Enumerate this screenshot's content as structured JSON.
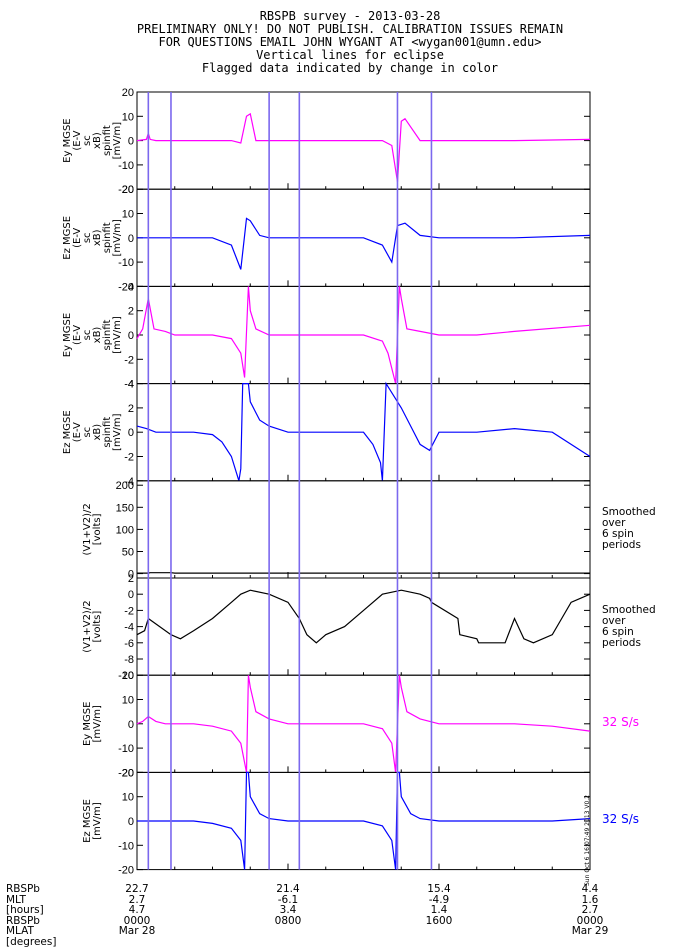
{
  "header": {
    "lines": [
      "RBSPB survey - 2013-03-28",
      "PRELIMINARY ONLY! DO NOT PUBLISH. CALIBRATION ISSUES REMAIN",
      "FOR QUESTIONS EMAIL JOHN WYGANT AT <wygan001@umn.edu>",
      "Vertical lines for eclipse",
      "Flagged data indicated by change in color"
    ]
  },
  "colors": {
    "magenta": "#ff00ff",
    "blue": "#0000ff",
    "black": "#000000",
    "eclipse": "#7b68ee"
  },
  "eclipse_lines_hours": [
    0.6,
    1.8,
    7.0,
    8.6,
    13.8,
    15.6
  ],
  "chart_data": [
    {
      "type": "line",
      "ylabel": [
        "Ey MGSE",
        "(E-V",
        "sc",
        "xB)",
        "spinfit",
        "[mV/m]"
      ],
      "ylim": [
        -20,
        20
      ],
      "yticks": [
        20,
        10,
        0,
        -10,
        -20
      ],
      "color": "magenta",
      "x_hours": [
        0,
        0.5,
        0.6,
        0.7,
        1.0,
        1.5,
        2.0,
        3.0,
        4.0,
        5.0,
        5.5,
        5.8,
        6.0,
        6.3,
        7.0,
        8.0,
        9.0,
        12.0,
        13.0,
        13.5,
        13.8,
        14.0,
        14.2,
        15.0,
        16.0,
        18.0,
        20.0,
        24.0
      ],
      "values": [
        0,
        0.5,
        3,
        0.5,
        0,
        0,
        0,
        0,
        0,
        0,
        -1,
        10,
        11,
        0,
        0,
        0,
        0,
        0,
        0,
        -2,
        -17,
        8,
        9,
        0,
        0,
        0,
        0,
        0.5
      ]
    },
    {
      "type": "line",
      "ylabel": [
        "Ez MGSE",
        "(E-V",
        "sc",
        "xB)",
        "spinfit",
        "[mV/m]"
      ],
      "ylim": [
        -20,
        20
      ],
      "yticks": [
        20,
        10,
        0,
        -10,
        -20
      ],
      "color": "blue",
      "x_hours": [
        0,
        0.5,
        1.0,
        2.0,
        3.0,
        4.0,
        5.0,
        5.5,
        5.8,
        6.0,
        6.5,
        7.0,
        8.0,
        9.0,
        12.0,
        13.0,
        13.5,
        13.8,
        14.2,
        15.0,
        16.0,
        18.0,
        20.0,
        24.0
      ],
      "values": [
        0,
        0,
        0,
        0,
        0,
        0,
        -3,
        -13,
        8,
        7,
        1,
        0,
        0,
        0,
        0,
        -3,
        -10,
        5,
        6,
        1,
        0,
        0,
        0,
        1
      ]
    },
    {
      "type": "line",
      "ylabel": [
        "Ey MGSE",
        "(E-V",
        "sc",
        "xB)",
        "spinfit",
        "[mV/m]"
      ],
      "ylim": [
        -4,
        4
      ],
      "yticks": [
        4,
        2,
        0,
        -2,
        -4
      ],
      "color": "magenta",
      "x_hours": [
        0,
        0.3,
        0.6,
        0.9,
        1.5,
        2.0,
        3.0,
        4.0,
        5.0,
        5.5,
        5.7,
        5.9,
        6.0,
        6.3,
        7.0,
        8.0,
        9.0,
        12.0,
        13.0,
        13.3,
        13.7,
        13.9,
        14.0,
        14.3,
        15.0,
        16.0,
        18.0,
        20.0,
        24.0
      ],
      "values": [
        -0.3,
        0.5,
        3,
        0.5,
        0.3,
        0,
        0,
        0,
        -0.3,
        -1.5,
        -3.5,
        4,
        2,
        0.5,
        0,
        0,
        0,
        0,
        -0.5,
        -1.5,
        -4,
        4,
        3,
        0.5,
        0.3,
        0,
        0,
        0.3,
        0.8
      ]
    },
    {
      "type": "line",
      "ylabel": [
        "Ez MGSE",
        "(E-V",
        "sc",
        "xB)",
        "spinfit",
        "[mV/m]"
      ],
      "ylim": [
        -4,
        4
      ],
      "yticks": [
        4,
        2,
        0,
        -2,
        -4
      ],
      "color": "blue",
      "x_hours": [
        0,
        0.5,
        1.0,
        2.0,
        3.0,
        4.0,
        4.5,
        5.0,
        5.4,
        5.5,
        5.6,
        5.9,
        6.0,
        6.5,
        7.0,
        8.0,
        9.0,
        12.0,
        12.5,
        12.9,
        13.0,
        13.2,
        14.0,
        14.5,
        15.0,
        15.5,
        16.0,
        18.0,
        20.0,
        22.0,
        24.0
      ],
      "values": [
        0.5,
        0.3,
        0,
        0,
        0,
        -0.2,
        -0.8,
        -2,
        -4,
        -3,
        4,
        4,
        2.5,
        1,
        0.5,
        0,
        0,
        0,
        -1,
        -2.5,
        -4,
        4,
        2,
        0.5,
        -1,
        -1.5,
        0,
        0,
        0.3,
        0,
        -2
      ]
    },
    {
      "type": "line",
      "ylabel": [
        "(V1+V2)/2",
        "[volts]"
      ],
      "ylim": [
        -10,
        210
      ],
      "yticks": [
        200,
        150,
        100,
        50,
        0
      ],
      "color": "black",
      "note": [
        "Smoothed",
        "over",
        "6 spin",
        "periods"
      ],
      "x_hours": [
        0,
        0.6,
        0.7,
        1.8,
        2.0,
        24.0
      ],
      "values": [
        1,
        1,
        2,
        2,
        1,
        1
      ]
    },
    {
      "type": "line",
      "ylabel": [
        "(V1+V2)/2",
        "[volts]"
      ],
      "ylim": [
        -10,
        2
      ],
      "yticks": [
        2,
        0,
        -2,
        -4,
        -6,
        -8,
        -10
      ],
      "color": "black",
      "note": [
        "Smoothed",
        "over",
        "6 spin",
        "periods"
      ],
      "x_hours": [
        0,
        0.4,
        0.6,
        1.8,
        2.3,
        3.0,
        4.0,
        5.0,
        5.5,
        6.0,
        7.0,
        8.0,
        8.6,
        9.0,
        9.5,
        10.0,
        11.0,
        12.0,
        13.0,
        14.0,
        15.0,
        15.5,
        15.6,
        17.0,
        17.1,
        18.0,
        18.1,
        19.0,
        19.5,
        20.0,
        20.5,
        21.0,
        22.0,
        22.5,
        23.0,
        24.0
      ],
      "values": [
        -5,
        -4.5,
        -3,
        -5,
        -5.5,
        -4.5,
        -3,
        -1,
        0,
        0.5,
        0,
        -1,
        -3,
        -5,
        -6,
        -5,
        -4,
        -2,
        0,
        0.5,
        0,
        -0.5,
        -1,
        -3,
        -5,
        -5.5,
        -6,
        -6,
        -6,
        -3,
        -5.5,
        -6,
        -5,
        -3,
        -1,
        0
      ]
    },
    {
      "type": "line",
      "ylabel": [
        "Ey MGSE",
        "[mV/m]"
      ],
      "ylim": [
        -20,
        20
      ],
      "yticks": [
        20,
        10,
        0,
        -10,
        -20
      ],
      "color": "magenta",
      "note": [
        "32 S/s"
      ],
      "x_hours": [
        0,
        0.3,
        0.6,
        1.0,
        1.5,
        2.0,
        3.0,
        4.0,
        5.0,
        5.5,
        5.8,
        5.9,
        6.0,
        6.3,
        7.0,
        8.0,
        9.0,
        10.0,
        11.0,
        12.0,
        13.0,
        13.5,
        13.7,
        13.9,
        14.0,
        14.3,
        15.0,
        16.0,
        18.0,
        20.0,
        22.0,
        24.0
      ],
      "values": [
        0,
        1,
        3,
        1,
        0,
        0,
        0,
        -1,
        -3,
        -8,
        -20,
        20,
        15,
        5,
        2,
        0,
        0,
        0,
        0,
        0,
        -2,
        -8,
        -20,
        20,
        15,
        5,
        2,
        0,
        0,
        0,
        -1,
        -3
      ]
    },
    {
      "type": "line",
      "ylabel": [
        "Ez MGSE",
        "[mV/m]"
      ],
      "ylim": [
        -20,
        20
      ],
      "yticks": [
        20,
        10,
        0,
        -10,
        -20
      ],
      "color": "blue",
      "note": [
        "32 S/s"
      ],
      "x_hours": [
        0,
        0.5,
        1.0,
        2.0,
        3.0,
        4.0,
        5.0,
        5.5,
        5.7,
        5.8,
        5.9,
        6.0,
        6.5,
        7.0,
        8.0,
        9.0,
        10.0,
        12.0,
        13.0,
        13.5,
        13.7,
        13.8,
        13.9,
        14.0,
        14.5,
        15.0,
        16.0,
        18.0,
        20.0,
        22.0,
        24.0
      ],
      "values": [
        0,
        0,
        0,
        0,
        0,
        -1,
        -3,
        -8,
        -20,
        20,
        20,
        10,
        3,
        1,
        0,
        0,
        0,
        0,
        -2,
        -8,
        -20,
        20,
        20,
        10,
        3,
        1,
        0,
        0,
        0,
        0,
        1
      ]
    }
  ],
  "ephemeris": {
    "labels": [
      "RBSPb",
      "MLT",
      "[hours]",
      "RBSPb",
      "MLAT",
      "[degrees]"
    ],
    "ticks": [
      {
        "x_hours": 0,
        "values": [
          "22.7",
          "2.7",
          "4.7",
          "0000",
          "Mar 28"
        ]
      },
      {
        "x_hours": 8,
        "values": [
          "21.4",
          "-6.1",
          "3.4",
          "0800",
          ""
        ]
      },
      {
        "x_hours": 16,
        "values": [
          "15.4",
          "-4.9",
          "1.4",
          "1600",
          ""
        ]
      },
      {
        "x_hours": 24,
        "values": [
          "4.4",
          "1.6",
          "2.7",
          "0000",
          "Mar 29"
        ]
      }
    ]
  },
  "stamp": "Sun Oct 6 16:07:49 2013 V0.2"
}
